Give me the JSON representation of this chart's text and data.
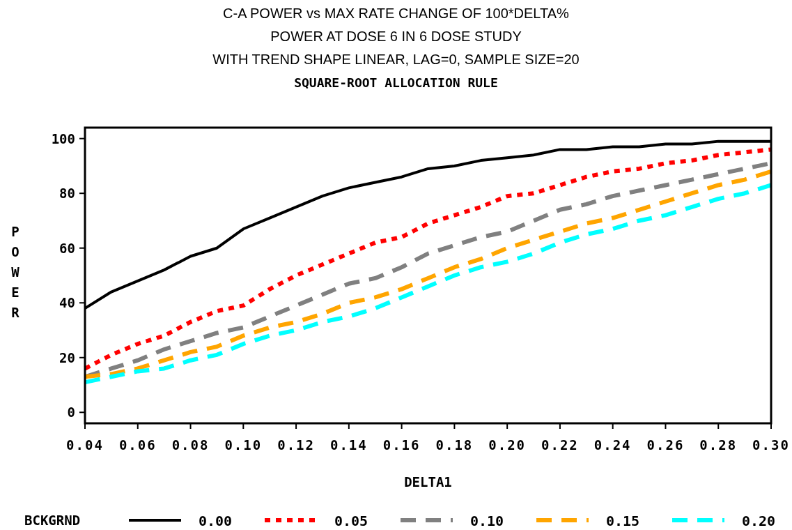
{
  "chart_data": {
    "type": "line",
    "title": "C-A POWER vs MAX RATE CHANGE OF 100*DELTA%\nPOWER AT DOSE 6 IN 6 DOSE STUDY\nWITH TREND SHAPE LINEAR, LAG=0, SAMPLE SIZE=20",
    "subtitle": "SQUARE-ROOT ALLOCATION RULE",
    "xlabel": "DELTA1",
    "ylabel": "POWER",
    "legend_title": "BCKGRND",
    "legend": "bottom",
    "grid": false,
    "x": [
      0.04,
      0.05,
      0.06,
      0.07,
      0.08,
      0.09,
      0.1,
      0.11,
      0.12,
      0.13,
      0.14,
      0.15,
      0.16,
      0.17,
      0.18,
      0.19,
      0.2,
      0.21,
      0.22,
      0.23,
      0.24,
      0.25,
      0.26,
      0.27,
      0.28,
      0.29,
      0.3
    ],
    "xlim": [
      0.04,
      0.3
    ],
    "xticks": [
      {
        "value": 0.04,
        "label": "0.04"
      },
      {
        "value": 0.06,
        "label": "0.06"
      },
      {
        "value": 0.08,
        "label": "0.08"
      },
      {
        "value": 0.1,
        "label": "0.10"
      },
      {
        "value": 0.12,
        "label": "0.12"
      },
      {
        "value": 0.14,
        "label": "0.14"
      },
      {
        "value": 0.16,
        "label": "0.16"
      },
      {
        "value": 0.18,
        "label": "0.18"
      },
      {
        "value": 0.2,
        "label": "0.20"
      },
      {
        "value": 0.22,
        "label": "0.22"
      },
      {
        "value": 0.24,
        "label": "0.24"
      },
      {
        "value": 0.26,
        "label": "0.26"
      },
      {
        "value": 0.28,
        "label": "0.28"
      },
      {
        "value": 0.3,
        "label": "0.30"
      }
    ],
    "ylim": [
      -4,
      104
    ],
    "yticks": [
      0,
      20,
      40,
      60,
      80,
      100
    ],
    "series": [
      {
        "name": "0.00",
        "color": "#000000",
        "line_style": "solid",
        "values": [
          38,
          44,
          48,
          52,
          57,
          60,
          67,
          71,
          75,
          79,
          82,
          84,
          86,
          89,
          90,
          92,
          93,
          94,
          96,
          96,
          97,
          97,
          98,
          98,
          99,
          99,
          99
        ]
      },
      {
        "name": "0.05",
        "color": "#ff0000",
        "line_style": "dotted",
        "values": [
          16,
          21,
          25,
          28,
          33,
          37,
          39,
          45,
          50,
          54,
          58,
          62,
          64,
          69,
          72,
          75,
          79,
          80,
          83,
          86,
          88,
          89,
          91,
          92,
          94,
          95,
          96
        ]
      },
      {
        "name": "0.10",
        "color": "#808080",
        "line_style": "dashed",
        "values": [
          13,
          16,
          19,
          23,
          26,
          29,
          31,
          35,
          39,
          43,
          47,
          49,
          53,
          58,
          61,
          64,
          66,
          70,
          74,
          76,
          79,
          81,
          83,
          85,
          87,
          89,
          91
        ]
      },
      {
        "name": "0.15",
        "color": "#ffa500",
        "line_style": "dashed",
        "values": [
          13,
          14,
          16,
          19,
          22,
          24,
          28,
          31,
          33,
          36,
          40,
          42,
          45,
          49,
          53,
          56,
          60,
          63,
          66,
          69,
          71,
          74,
          77,
          80,
          83,
          85,
          88
        ]
      },
      {
        "name": "0.20",
        "color": "#00ffff",
        "line_style": "dashed",
        "values": [
          11,
          13,
          15,
          16,
          19,
          21,
          25,
          28,
          30,
          33,
          35,
          38,
          42,
          46,
          50,
          53,
          55,
          58,
          62,
          65,
          67,
          70,
          72,
          75,
          78,
          80,
          83
        ]
      }
    ]
  }
}
